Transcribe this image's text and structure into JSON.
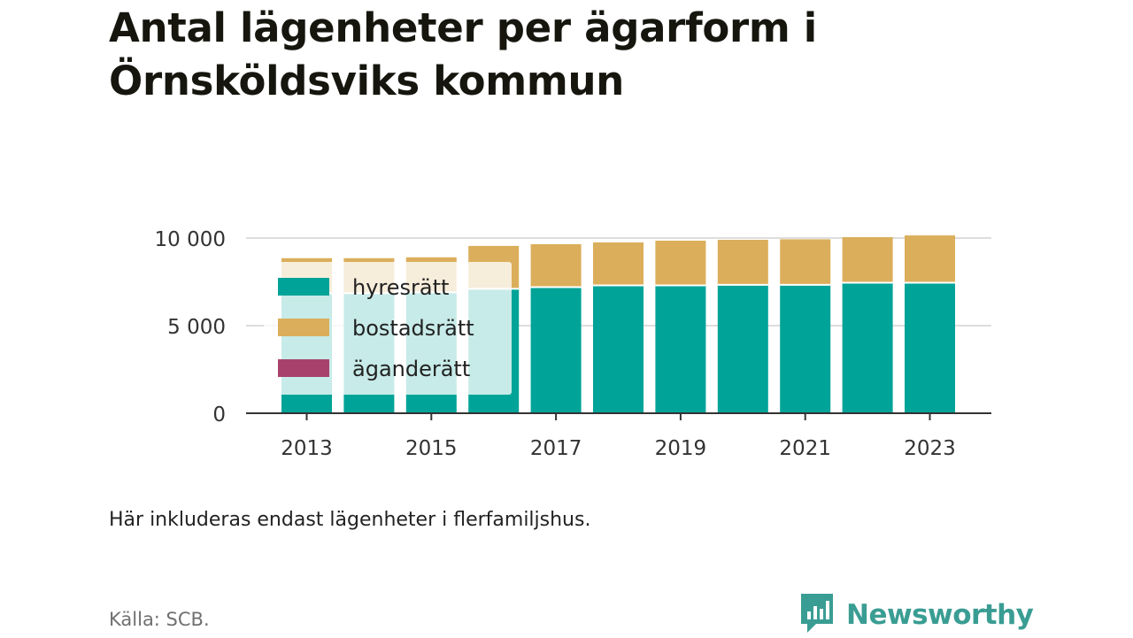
{
  "title": "Antal lägenheter per ägarform i Örnsköldsviks kommun",
  "note": "Här inkluderas endast lägenheter i flerfamiljshus.",
  "source": "Källa: SCB.",
  "brand": {
    "name": "Newsworthy",
    "icon": "newsworthy-logo-icon",
    "color": "#3a9d93"
  },
  "chart_data": {
    "type": "bar",
    "stacked": true,
    "categories": [
      "2013",
      "2014",
      "2015",
      "2016",
      "2017",
      "2018",
      "2019",
      "2020",
      "2021",
      "2022",
      "2023"
    ],
    "x_tick_labels": [
      "2013",
      "2015",
      "2017",
      "2019",
      "2021",
      "2023"
    ],
    "series": [
      {
        "name": "hyresrätt",
        "color": "#00a398",
        "values": [
          6850,
          6850,
          6900,
          7100,
          7200,
          7300,
          7300,
          7330,
          7330,
          7450,
          7450
        ]
      },
      {
        "name": "bostadsrätt",
        "color": "#dbae5b",
        "values": [
          2000,
          2000,
          2000,
          2450,
          2450,
          2450,
          2550,
          2570,
          2600,
          2600,
          2700
        ]
      },
      {
        "name": "äganderätt",
        "color": "#a8426d",
        "values": [
          0,
          0,
          0,
          0,
          0,
          0,
          0,
          0,
          0,
          0,
          0
        ]
      }
    ],
    "y_ticks": [
      {
        "value": 0,
        "label": "0"
      },
      {
        "value": 5000,
        "label": "5 000"
      },
      {
        "value": 10000,
        "label": "10 000"
      }
    ],
    "ylim": [
      0,
      10000
    ],
    "grid": true,
    "legend_position": "top-left",
    "xlabel": "",
    "ylabel": ""
  }
}
